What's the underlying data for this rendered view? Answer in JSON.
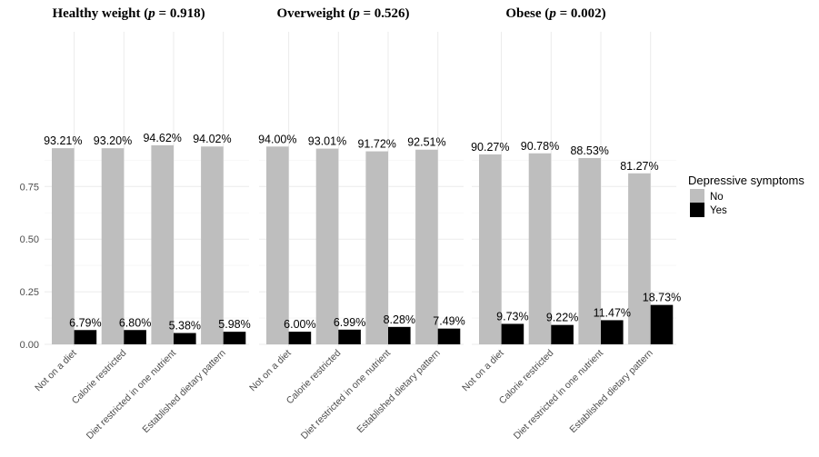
{
  "chart_data": {
    "type": "bar",
    "series_names": [
      "No",
      "Yes"
    ],
    "colors": {
      "No": "#bebebe",
      "Yes": "#000000"
    },
    "ylim": [
      0,
      0.96
    ],
    "yticks": [
      "0.00",
      "0.25",
      "0.50",
      "0.75"
    ],
    "ytick_values": [
      0,
      0.25,
      0.5,
      0.75
    ],
    "grid": true,
    "legend": {
      "title": "Depressive symptoms",
      "position": "right",
      "entries": [
        "No",
        "Yes"
      ]
    },
    "panels": [
      {
        "title_prefix": "Healthy weight (",
        "title_p": "p",
        "title_suffix": " = 0.918)",
        "categories": [
          "Not on a diet",
          "Calorie restricted",
          "Diet restricted in one nutrient",
          "Established dietary pattern"
        ],
        "series": [
          {
            "name": "No",
            "values": [
              0.9321,
              0.932,
              0.9462,
              0.9402
            ],
            "labels": [
              "93.21%",
              "93.20%",
              "94.62%",
              "94.02%"
            ]
          },
          {
            "name": "Yes",
            "values": [
              0.0679,
              0.068,
              0.0538,
              0.0598
            ],
            "labels": [
              "6.79%",
              "6.80%",
              "5.38%",
              "5.98%"
            ]
          }
        ]
      },
      {
        "title_prefix": "Overweight (",
        "title_p": "p",
        "title_suffix": " = 0.526)",
        "categories": [
          "Not on a diet",
          "Calorie restricted",
          "Diet restricted in one nutrient",
          "Established dietary pattern"
        ],
        "series": [
          {
            "name": "No",
            "values": [
              0.94,
              0.9301,
              0.9172,
              0.9251
            ],
            "labels": [
              "94.00%",
              "93.01%",
              "91.72%",
              "92.51%"
            ]
          },
          {
            "name": "Yes",
            "values": [
              0.06,
              0.0699,
              0.0828,
              0.0749
            ],
            "labels": [
              "6.00%",
              "6.99%",
              "8.28%",
              "7.49%"
            ]
          }
        ]
      },
      {
        "title_prefix": "Obese (",
        "title_p": "p",
        "title_suffix": " = 0.002)",
        "categories": [
          "Not on a diet",
          "Calorie restricted",
          "Diet restricted in one nutrient",
          "Established dietary pattern"
        ],
        "series": [
          {
            "name": "No",
            "values": [
              0.9027,
              0.9078,
              0.8853,
              0.8127
            ],
            "labels": [
              "90.27%",
              "90.78%",
              "88.53%",
              "81.27%"
            ]
          },
          {
            "name": "Yes",
            "values": [
              0.0973,
              0.0922,
              0.1147,
              0.1873
            ],
            "labels": [
              "9.73%",
              "9.22%",
              "11.47%",
              "18.73%"
            ]
          }
        ]
      }
    ]
  }
}
